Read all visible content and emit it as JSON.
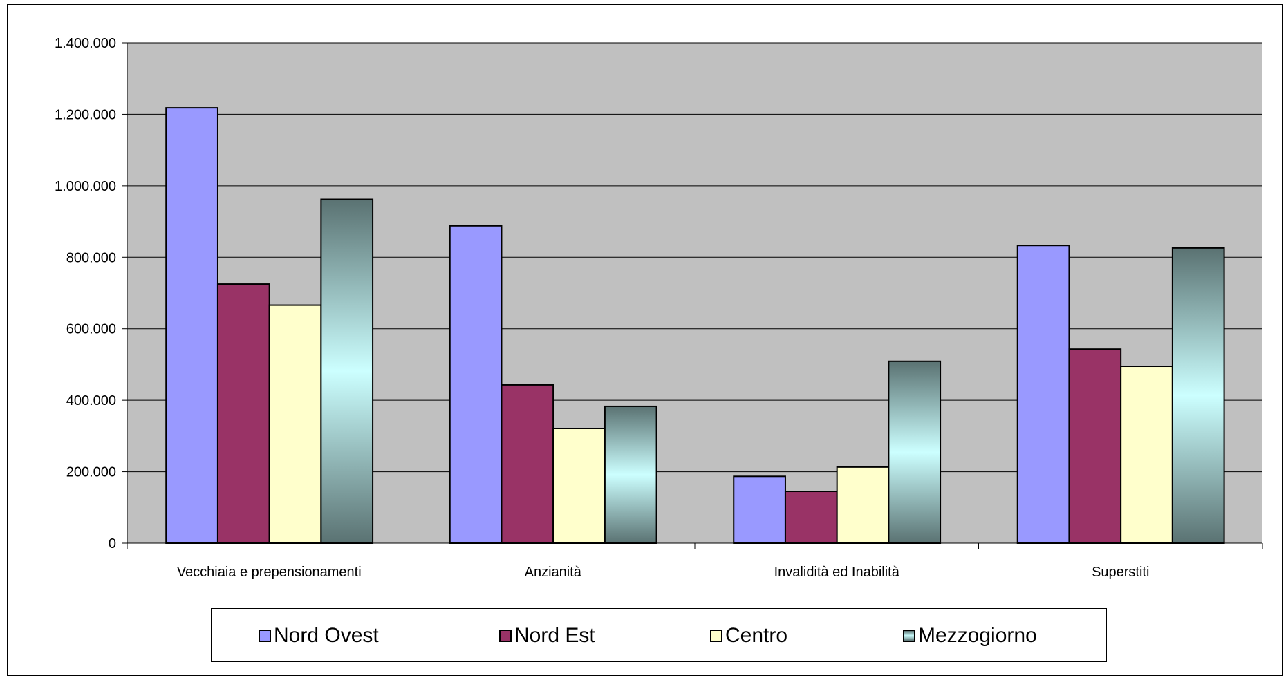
{
  "chart_data": {
    "type": "bar",
    "categories": [
      "Vecchiaia e prepensionamenti",
      "Anzianità",
      "Invalidità ed Inabilità",
      "Superstiti"
    ],
    "series": [
      {
        "name": "Nord Ovest",
        "values": [
          1218000,
          888000,
          187000,
          833000
        ],
        "color": "#9999ff"
      },
      {
        "name": "Nord Est",
        "values": [
          725000,
          443000,
          145000,
          543000
        ],
        "color": "#993366"
      },
      {
        "name": "Centro",
        "values": [
          666000,
          321000,
          213000,
          495000
        ],
        "color": "#ffffcc"
      },
      {
        "name": "Mezzogiorno",
        "values": [
          962000,
          383000,
          509000,
          826000
        ],
        "color": "gradient-teal"
      }
    ],
    "yticks": [
      "0",
      "200.000",
      "400.000",
      "600.000",
      "800.000",
      "1.000.000",
      "1.200.000",
      "1.400.000"
    ],
    "ylim": [
      0,
      1400000
    ],
    "grid": true,
    "plot_background": "#c0c0c0",
    "legend_position": "bottom"
  }
}
